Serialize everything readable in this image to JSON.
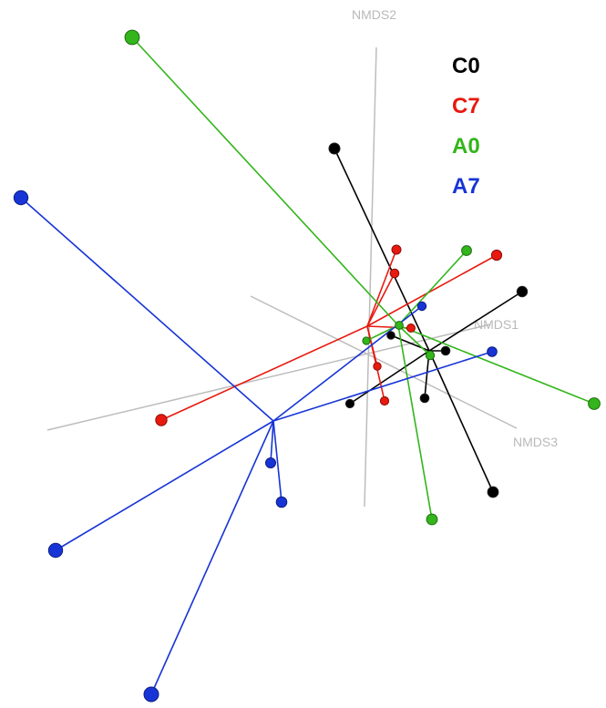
{
  "chart_data": {
    "type": "scatter",
    "subtype": "3d-nmds-spider-plot",
    "title": "",
    "axes": [
      "NMDS1",
      "NMDS2",
      "NMDS3"
    ],
    "grid": false,
    "legend_placement": "top-right",
    "series": [
      {
        "name": "C0",
        "color": "#000000",
        "centroid": [
          471,
          385
        ],
        "points": [
          [
            367,
            163
          ],
          [
            573,
            320
          ],
          [
            429,
            368
          ],
          [
            489,
            385
          ],
          [
            384,
            443
          ],
          [
            466,
            437
          ],
          [
            541,
            540
          ]
        ]
      },
      {
        "name": "C7",
        "color": "#e8190f",
        "centroid": [
          403,
          358
        ],
        "points": [
          [
            435,
            274
          ],
          [
            545,
            280
          ],
          [
            433,
            300
          ],
          [
            451,
            360
          ],
          [
            414,
            402
          ],
          [
            422,
            440
          ],
          [
            177,
            461
          ]
        ]
      },
      {
        "name": "A0",
        "color": "#33b51b",
        "centroid": [
          437,
          357
        ],
        "points": [
          [
            145,
            41
          ],
          [
            512,
            275
          ],
          [
            438,
            357
          ],
          [
            402,
            374
          ],
          [
            472,
            390
          ],
          [
            652,
            443
          ],
          [
            474,
            570
          ]
        ]
      },
      {
        "name": "A7",
        "color": "#1734d6",
        "centroid": [
          300,
          462
        ],
        "points": [
          [
            23,
            217
          ],
          [
            463,
            336
          ],
          [
            540,
            386
          ],
          [
            297,
            508
          ],
          [
            309,
            551
          ],
          [
            61,
            604
          ],
          [
            166,
            762
          ]
        ]
      }
    ]
  },
  "colors": {
    "axis": "#bdbdbd",
    "axis_label": "#b9b9b9"
  }
}
